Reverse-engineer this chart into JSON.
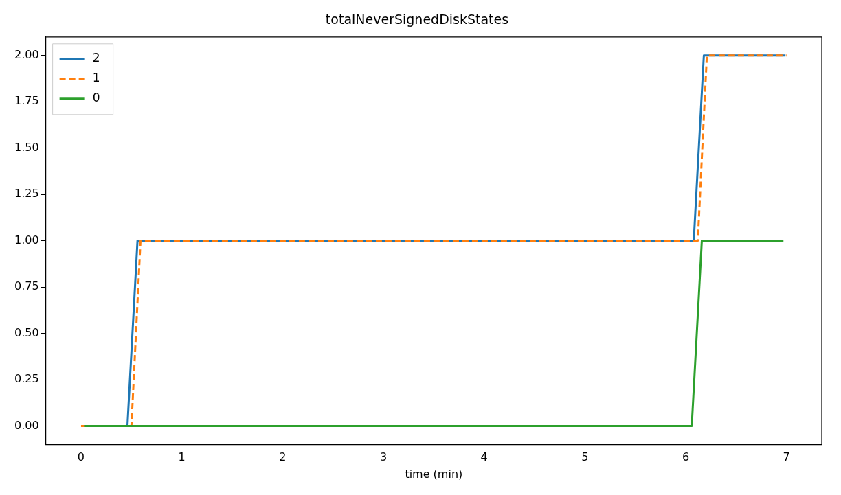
{
  "chart_data": {
    "type": "line",
    "title": "totalNeverSignedDiskStates",
    "xlabel": "time (min)",
    "xlim": [
      -0.35,
      7.35
    ],
    "xticks": [
      0,
      1,
      2,
      3,
      4,
      5,
      6,
      7
    ],
    "ylim": [
      -0.1,
      2.1
    ],
    "yticks": [
      {
        "value": 0,
        "label": "0.00"
      },
      {
        "value": 0.25,
        "label": "0.25"
      },
      {
        "value": 0.5,
        "label": "0.50"
      },
      {
        "value": 0.75,
        "label": "0.75"
      },
      {
        "value": 1,
        "label": "1.00"
      },
      {
        "value": 1.25,
        "label": "1.25"
      },
      {
        "value": 1.5,
        "label": "1.50"
      },
      {
        "value": 1.75,
        "label": "1.75"
      },
      {
        "value": 2,
        "label": "2.00"
      }
    ],
    "grid": false,
    "legend": "top left",
    "marker": "none",
    "series": [
      {
        "name": "2",
        "color": "#1f77b4",
        "line_style": "solid",
        "x": [
          0.03,
          0.46,
          0.56,
          6.08,
          6.18,
          6.99
        ],
        "values": [
          0,
          0,
          1,
          1,
          2,
          2
        ]
      },
      {
        "name": "1",
        "color": "#ff7f0e",
        "line_style": "dashed",
        "x": [
          0.0,
          0.5,
          0.59,
          6.12,
          6.21,
          7.0
        ],
        "values": [
          0,
          0,
          1,
          1,
          2,
          2
        ]
      },
      {
        "name": "0",
        "color": "#2ca02c",
        "line_style": "solid",
        "x": [
          0.03,
          6.06,
          6.16,
          6.97
        ],
        "values": [
          0,
          0,
          1,
          1
        ]
      }
    ]
  }
}
